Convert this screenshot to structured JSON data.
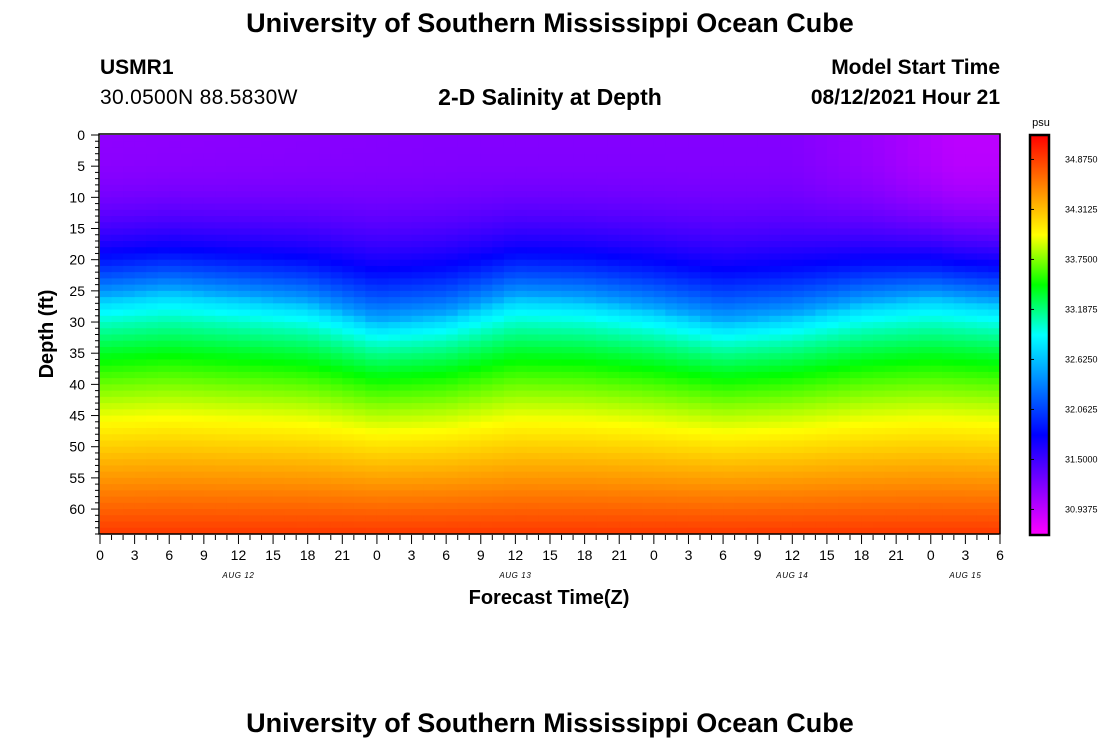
{
  "header": {
    "title": "University of Southern Mississippi Ocean Cube",
    "station": "USMR1",
    "coords": "30.0500N  88.5830W",
    "plot_title": "2-D Salinity at Depth",
    "model_label": "Model Start Time",
    "model_time": "08/12/2021 Hour 21"
  },
  "footer": {
    "title": "University of Southern Mississippi Ocean Cube"
  },
  "chart_data": {
    "type": "heatmap",
    "title": "2-D Salinity at Depth",
    "xlabel": "Forecast Time(Z)",
    "ylabel": "Depth (ft)",
    "x_range_hours": [
      0,
      78
    ],
    "y_range_ft": [
      0,
      64
    ],
    "x_tick_labels": [
      "0",
      "3",
      "6",
      "9",
      "12",
      "15",
      "18",
      "21",
      "0",
      "3",
      "6",
      "9",
      "12",
      "15",
      "18",
      "21",
      "0",
      "3",
      "6",
      "9",
      "12",
      "15",
      "18",
      "21",
      "0",
      "3",
      "6"
    ],
    "y_tick_labels": [
      "0",
      "5",
      "10",
      "15",
      "20",
      "25",
      "30",
      "35",
      "40",
      "45",
      "50",
      "55",
      "60"
    ],
    "day_labels": [
      {
        "hour": 12,
        "label": "AUG 12"
      },
      {
        "hour": 36,
        "label": "AUG 13"
      },
      {
        "hour": 60,
        "label": "AUG 14"
      },
      {
        "hour": 75,
        "label": "AUG 15"
      }
    ],
    "colorbar": {
      "unit": "psu",
      "min": 30.65,
      "max": 35.15,
      "tick_labels": [
        "34.8750",
        "34.3125",
        "33.7500",
        "33.1875",
        "32.6250",
        "32.0625",
        "31.5000",
        "30.9375"
      ]
    },
    "halocline_depth_ft": [
      {
        "hour": 0,
        "depth": 26
      },
      {
        "hour": 6,
        "depth": 25
      },
      {
        "hour": 12,
        "depth": 26
      },
      {
        "hour": 18,
        "depth": 27
      },
      {
        "hour": 24,
        "depth": 30
      },
      {
        "hour": 30,
        "depth": 29
      },
      {
        "hour": 36,
        "depth": 26
      },
      {
        "hour": 42,
        "depth": 26.5
      },
      {
        "hour": 48,
        "depth": 28
      },
      {
        "hour": 54,
        "depth": 30
      },
      {
        "hour": 60,
        "depth": 29
      },
      {
        "hour": 66,
        "depth": 27
      },
      {
        "hour": 72,
        "depth": 26
      },
      {
        "hour": 78,
        "depth": 27
      }
    ],
    "surface_salinity_psu": [
      {
        "hour": 0,
        "value": 31.15
      },
      {
        "hour": 30,
        "value": 31.2
      },
      {
        "hour": 60,
        "value": 31.2
      },
      {
        "hour": 67,
        "value": 31.1
      },
      {
        "hour": 74,
        "value": 30.95
      },
      {
        "hour": 78,
        "value": 30.95
      }
    ],
    "bottom_salinity_psu": 34.9
  }
}
